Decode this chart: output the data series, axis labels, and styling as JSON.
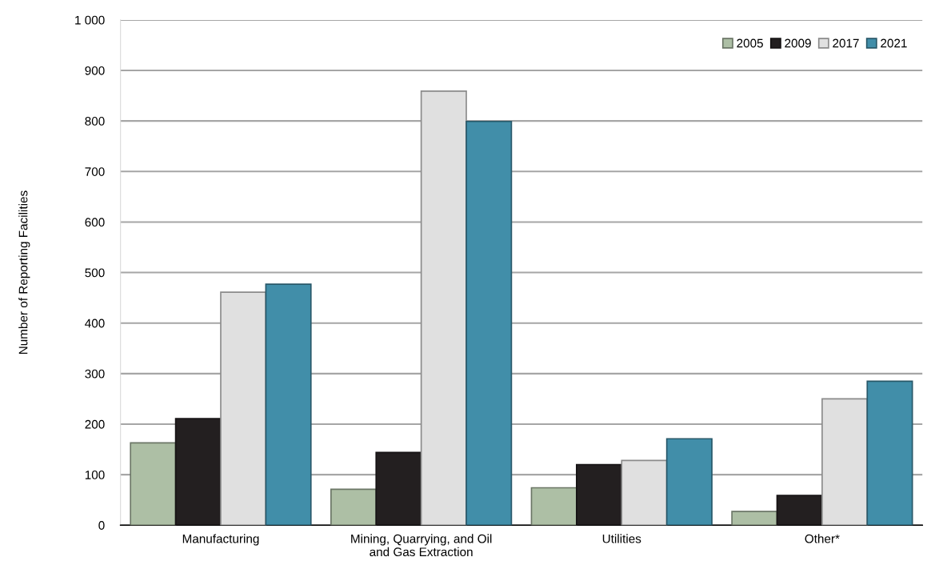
{
  "chart_data": {
    "type": "bar",
    "ylabel": "Number of Reporting Facilities",
    "categories": [
      "Manufacturing",
      "Mining, Quarrying, and Oil\nand Gas Extraction",
      "Utilities",
      "Other*"
    ],
    "series": [
      {
        "name": "2005",
        "color": "#adbfa5",
        "values": [
          163,
          71,
          74,
          27
        ]
      },
      {
        "name": "2009",
        "color": "#231f20",
        "values": [
          211,
          144,
          120,
          59
        ]
      },
      {
        "name": "2017",
        "color": "#e0e0e0",
        "values": [
          461,
          859,
          128,
          250
        ]
      },
      {
        "name": "2021",
        "color": "#418ea9",
        "values": [
          477,
          799,
          171,
          285
        ]
      }
    ],
    "ylim": [
      0,
      1000
    ],
    "yticks": [
      0,
      100,
      200,
      300,
      400,
      500,
      600,
      700,
      800,
      900,
      {
        "value": 1000,
        "label": "1 000"
      }
    ],
    "grid": "y",
    "legend": "top right"
  }
}
